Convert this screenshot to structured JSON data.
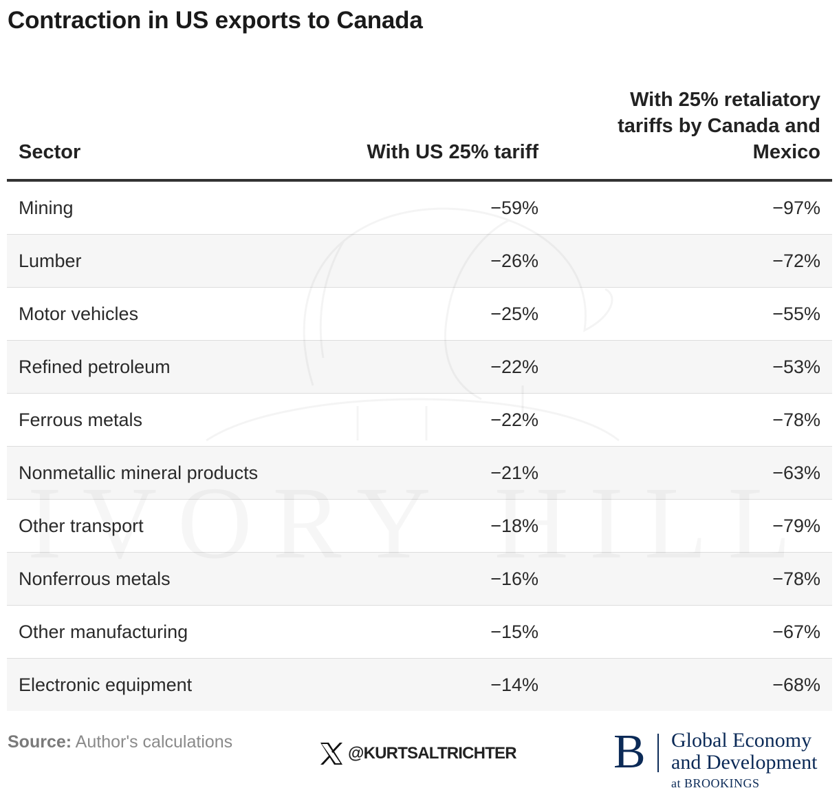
{
  "title": "Contraction in US exports to Canada",
  "chart_data": {
    "type": "table",
    "columns": [
      "Sector",
      "With US 25% tariff",
      "With 25% retaliatory tariffs by Canada and Mexico"
    ],
    "rows": [
      {
        "sector": "Mining",
        "us_tariff": "−59%",
        "retaliatory": "−97%"
      },
      {
        "sector": "Lumber",
        "us_tariff": "−26%",
        "retaliatory": "−72%"
      },
      {
        "sector": "Motor vehicles",
        "us_tariff": "−25%",
        "retaliatory": "−55%"
      },
      {
        "sector": "Refined petroleum",
        "us_tariff": "−22%",
        "retaliatory": "−53%"
      },
      {
        "sector": "Ferrous metals",
        "us_tariff": "−22%",
        "retaliatory": "−78%"
      },
      {
        "sector": "Nonmetallic mineral products",
        "us_tariff": "−21%",
        "retaliatory": "−63%"
      },
      {
        "sector": "Other transport",
        "us_tariff": "−18%",
        "retaliatory": "−79%"
      },
      {
        "sector": "Nonferrous metals",
        "us_tariff": "−16%",
        "retaliatory": "−78%"
      },
      {
        "sector": "Other manufacturing",
        "us_tariff": "−15%",
        "retaliatory": "−67%"
      },
      {
        "sector": "Electronic equipment",
        "us_tariff": "−14%",
        "retaliatory": "−68%"
      }
    ],
    "values_us_tariff": [
      -59,
      -26,
      -25,
      -22,
      -22,
      -21,
      -18,
      -16,
      -15,
      -14
    ],
    "values_retaliatory": [
      -97,
      -72,
      -55,
      -53,
      -78,
      -63,
      -79,
      -78,
      -67,
      -68
    ]
  },
  "footer": {
    "source_label": "Source:",
    "source_text": "Author's calculations",
    "handle": "@KURTSALTRICHTER"
  },
  "brand": {
    "mark": "B",
    "line1": "Global Economy",
    "line2": "and Development",
    "line3": "at BROOKINGS"
  },
  "watermark": {
    "text": "IVORY HILL"
  },
  "colors": {
    "text": "#222222",
    "stripe": "#f6f6f6",
    "rule": "#333333",
    "brand_navy": "#0b2a57"
  }
}
